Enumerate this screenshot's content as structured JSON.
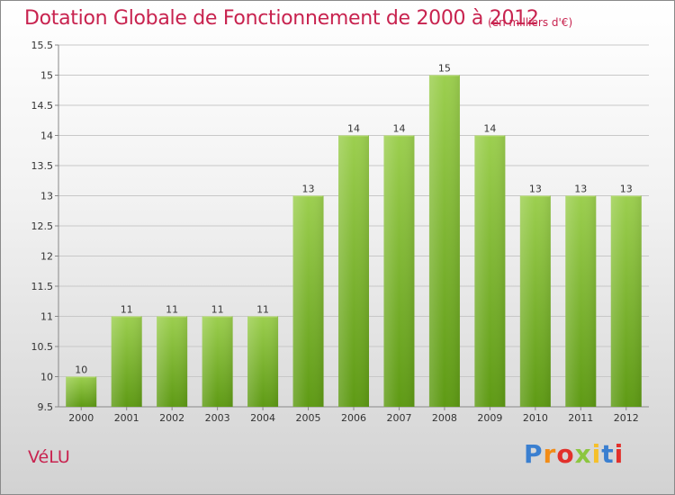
{
  "title": "Dotation Globale de Fonctionnement de 2000 à 2012",
  "subtitle": "(en milliers d'€)",
  "commune": "VéLU",
  "brand": "Proxiti",
  "colors": {
    "title": "#c8234f",
    "bar_top": "#9ccf4f",
    "bar_bottom": "#5e9a14",
    "grid": "#c8c8c8"
  },
  "chart_data": {
    "type": "bar",
    "categories": [
      "2000",
      "2001",
      "2002",
      "2003",
      "2004",
      "2005",
      "2006",
      "2007",
      "2008",
      "2009",
      "2010",
      "2011",
      "2012"
    ],
    "values": [
      10,
      11,
      11,
      11,
      11,
      13,
      14,
      14,
      15,
      14,
      13,
      13,
      13
    ],
    "data_labels": [
      "10",
      "11",
      "11",
      "11",
      "11",
      "13",
      "14",
      "14",
      "15",
      "14",
      "13",
      "13",
      "13"
    ],
    "title": "Dotation Globale de Fonctionnement de 2000 à 2012",
    "xlabel": "",
    "ylabel": "",
    "ylim": [
      9.5,
      15.5
    ],
    "yticks": [
      9.5,
      10,
      10.5,
      11,
      11.5,
      12,
      12.5,
      13,
      13.5,
      14,
      14.5,
      15,
      15.5
    ],
    "ytick_labels": [
      "9.5",
      "10",
      "10.5",
      "11",
      "11.5",
      "12",
      "12.5",
      "13",
      "13.5",
      "14",
      "14.5",
      "15",
      "15.5"
    ],
    "grid": true,
    "legend": "none"
  }
}
